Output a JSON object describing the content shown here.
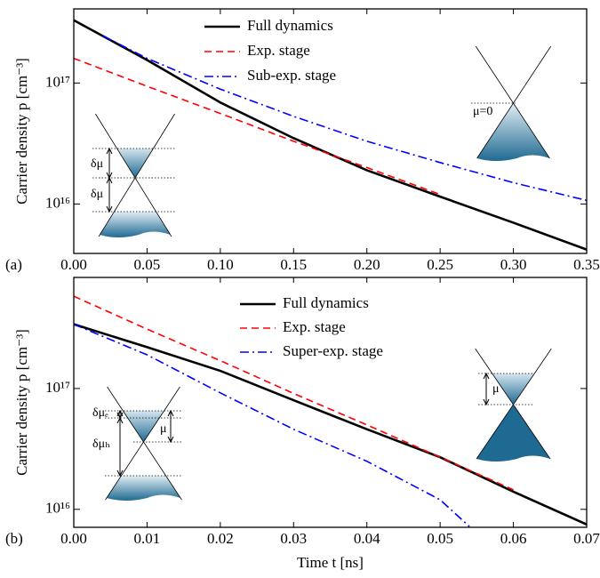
{
  "chart_data": [
    {
      "type": "line",
      "panel_label": "(a)",
      "ylabel": "Carrier density p [cm⁻³]",
      "yscale": "log",
      "xlim": [
        0,
        0.35
      ],
      "xticks": [
        {
          "value": 0,
          "label": "0.00"
        },
        0.05,
        {
          "value": 0.1,
          "label": "0.10"
        },
        0.15,
        {
          "value": 0.2,
          "label": "0.20"
        },
        0.25,
        {
          "value": 0.3,
          "label": "0.30"
        },
        0.35
      ],
      "ylim": [
        3900000000000000.0,
        4.1e+17
      ],
      "yticks": [
        {
          "value": 1e+16,
          "label": "10¹⁶"
        },
        {
          "value": 1e+17,
          "label": "10¹⁷"
        }
      ],
      "series": [
        {
          "name": "Full dynamics",
          "color": "#000000",
          "dash": "solid",
          "x": [
            0,
            0.05,
            0.1,
            0.15,
            0.2,
            0.25,
            0.3,
            0.35
          ],
          "values": [
            3.3e+17,
            1.55e+17,
            6.9e+16,
            3.5e+16,
            1.9e+16,
            1.15e+16,
            7000000000000000.0,
            4200000000000000.0
          ]
        },
        {
          "name": "Exp. stage",
          "color": "#ff0000",
          "dash": "dash",
          "x": [
            0,
            0.05,
            0.1,
            0.15,
            0.2,
            0.25
          ],
          "values": [
            1.6e+17,
            9.4e+16,
            5.6e+16,
            3.3e+16,
            2e+16,
            1.2e+16
          ]
        },
        {
          "name": "Sub-exp. stage",
          "color": "#0000ff",
          "dash": "dashdot",
          "x": [
            0.02,
            0.05,
            0.1,
            0.15,
            0.2,
            0.25,
            0.3,
            0.35
          ],
          "values": [
            2.45e+17,
            1.6e+17,
            8.9e+16,
            5.3e+16,
            3.3e+16,
            2.2e+16,
            1.5e+16,
            1.07e+16
          ]
        }
      ],
      "annotations": [
        "δμ",
        "δμ",
        "μ=0"
      ]
    },
    {
      "type": "line",
      "panel_label": "(b)",
      "ylabel": "Carrier density p [cm⁻³]",
      "xlabel": "Time t [ns]",
      "yscale": "log",
      "xlim": [
        0,
        0.07
      ],
      "xticks": [
        {
          "value": 0,
          "label": "0.00"
        },
        0.01,
        0.02,
        0.03,
        0.04,
        0.05,
        0.06,
        0.07
      ],
      "ylim": [
        7100000000000000.0,
        8.3e+17
      ],
      "yticks": [
        {
          "value": 1e+16,
          "label": "10¹⁶"
        },
        {
          "value": 1e+17,
          "label": "10¹⁷"
        }
      ],
      "series": [
        {
          "name": "Full dynamics",
          "color": "#000000",
          "dash": "solid",
          "x": [
            0,
            0.01,
            0.02,
            0.03,
            0.04,
            0.05,
            0.06,
            0.07
          ],
          "values": [
            3.4e+17,
            2.2e+17,
            1.4e+17,
            8e+16,
            4.6e+16,
            2.7e+16,
            1.4e+16,
            7500000000000000.0
          ]
        },
        {
          "name": "Exp. stage",
          "color": "#ff0000",
          "dash": "dash",
          "x": [
            0,
            0.01,
            0.02,
            0.03,
            0.04,
            0.05,
            0.06
          ],
          "values": [
            5.8e+17,
            3.1e+17,
            1.7e+17,
            9.1e+16,
            5e+16,
            2.7e+16,
            1.45e+16
          ]
        },
        {
          "name": "Super-exp. stage",
          "color": "#0000ff",
          "dash": "dashdot",
          "x": [
            0,
            0.01,
            0.02,
            0.03,
            0.04,
            0.05,
            0.054
          ],
          "values": [
            3.4e+17,
            1.9e+17,
            9.2e+16,
            4.6e+16,
            2.5e+16,
            1.2e+16,
            7200000000000000.0
          ]
        }
      ],
      "annotations": [
        "δμₑ",
        "δμₕ",
        "μ",
        "μ"
      ]
    }
  ]
}
